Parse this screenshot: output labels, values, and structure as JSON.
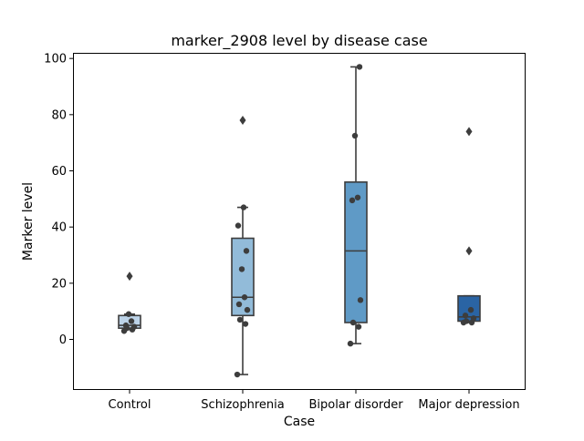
{
  "chart_data": {
    "type": "box",
    "title": "marker_2908 level by disease case",
    "xlabel": "Case",
    "ylabel": "Marker level",
    "categories": [
      "Control",
      "Schizophrenia",
      "Bipolar disorder",
      "Major depression"
    ],
    "ylim": [
      -18,
      102
    ],
    "yticks": [
      0,
      20,
      40,
      60,
      80,
      100
    ],
    "grid": false,
    "boxes": [
      {
        "category": "Control",
        "color": "#bcd3e8",
        "whisker_low": 3.5,
        "q1": 4.0,
        "median": 5.0,
        "q3": 8.5,
        "whisker_high": 9.0,
        "outliers": [
          22.5
        ],
        "points": [
          3.0,
          3.5,
          4.0,
          4.5,
          5.0,
          6.5,
          9.0
        ]
      },
      {
        "category": "Schizophrenia",
        "color": "#92bbd9",
        "whisker_low": -12.5,
        "q1": 8.5,
        "median": 15.0,
        "q3": 36.0,
        "whisker_high": 47.0,
        "outliers": [
          78.0
        ],
        "points": [
          -12.5,
          5.5,
          7.0,
          10.5,
          12.5,
          15.0,
          25.0,
          31.5,
          40.5,
          47.0
        ]
      },
      {
        "category": "Bipolar disorder",
        "color": "#5f9ac6",
        "whisker_low": -1.5,
        "q1": 6.0,
        "median": 31.5,
        "q3": 56.0,
        "whisker_high": 97.0,
        "outliers": [],
        "points": [
          -1.5,
          4.5,
          6.0,
          14.0,
          49.5,
          50.5,
          72.5,
          97.0
        ]
      },
      {
        "category": "Major depression",
        "color": "#2a64a4",
        "whisker_low": 6.0,
        "q1": 6.5,
        "median": 8.0,
        "q3": 15.5,
        "whisker_high": 15.5,
        "outliers": [
          31.5,
          74.0
        ],
        "points": [
          6.0,
          6.0,
          6.5,
          7.5,
          8.5,
          10.5
        ]
      }
    ]
  }
}
